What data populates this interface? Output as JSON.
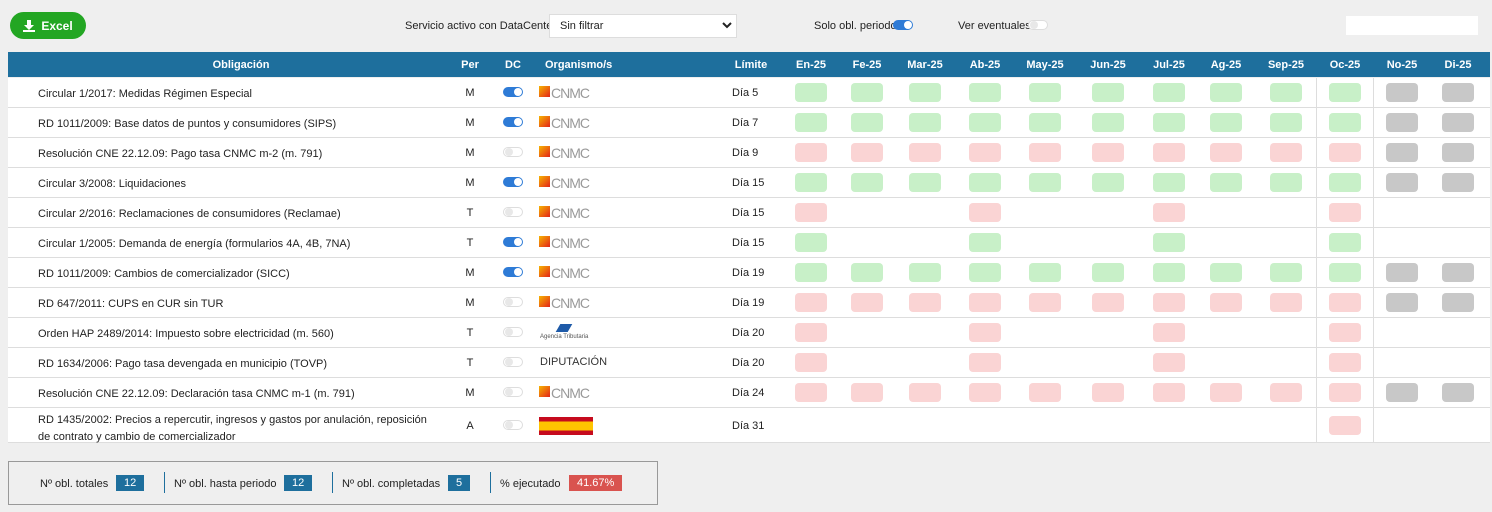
{
  "toolbar": {
    "excel_button": "Excel",
    "filter_label": "Servicio activo con DataCenter:",
    "filter_value": "Sin filtrar",
    "period_toggle_label": "Solo obl. periodo",
    "period_toggle_on": true,
    "eventual_toggle_label": "Ver eventuales",
    "eventual_toggle_on": false
  },
  "table": {
    "headers": [
      "Obligación",
      "Per",
      "DC",
      "Organismo/s",
      "Límite",
      "En-25",
      "Fe-25",
      "Mar-25",
      "Ab-25",
      "May-25",
      "Jun-25",
      "Jul-25",
      "Ag-25",
      "Sep-25",
      "Oc-25",
      "No-25",
      "Di-25"
    ],
    "rows": [
      {
        "obligation": "Circular 1/2017: Medidas Régimen Especial",
        "per": "M",
        "dc": true,
        "organism": "CNMC",
        "limit": "Día 5",
        "months": [
          "#c8f0c8",
          "#c8f0c8",
          "#c8f0c8",
          "#c8f0c8",
          "#c8f0c8",
          "#c8f0c8",
          "#c8f0c8",
          "#c8f0c8",
          "#c8f0c8",
          "#c8f0c8",
          "#c8c8c8",
          "#c8c8c8"
        ]
      },
      {
        "obligation": "RD 1011/2009: Base datos de puntos y consumidores (SIPS)",
        "per": "M",
        "dc": true,
        "organism": "CNMC",
        "limit": "Día 7",
        "months": [
          "#c8f0c8",
          "#c8f0c8",
          "#c8f0c8",
          "#c8f0c8",
          "#c8f0c8",
          "#c8f0c8",
          "#c8f0c8",
          "#c8f0c8",
          "#c8f0c8",
          "#c8f0c8",
          "#c8c8c8",
          "#c8c8c8"
        ]
      },
      {
        "obligation": "Resolución CNE 22.12.09: Pago tasa CNMC m-2 (m. 791)",
        "per": "M",
        "dc": false,
        "organism": "CNMC",
        "limit": "Día 9",
        "months": [
          "#fad4d4",
          "#fad4d4",
          "#fad4d4",
          "#fad4d4",
          "#fad4d4",
          "#fad4d4",
          "#fad4d4",
          "#fad4d4",
          "#fad4d4",
          "#fad4d4",
          "#c8c8c8",
          "#c8c8c8"
        ]
      },
      {
        "obligation": "Circular 3/2008: Liquidaciones",
        "per": "M",
        "dc": true,
        "organism": "CNMC",
        "limit": "Día 15",
        "months": [
          "#c8f0c8",
          "#c8f0c8",
          "#c8f0c8",
          "#c8f0c8",
          "#c8f0c8",
          "#c8f0c8",
          "#c8f0c8",
          "#c8f0c8",
          "#c8f0c8",
          "#c8f0c8",
          "#c8c8c8",
          "#c8c8c8"
        ]
      },
      {
        "obligation": "Circular 2/2016: Reclamaciones de consumidores (Reclamae)",
        "per": "T",
        "dc": false,
        "organism": "CNMC",
        "limit": "Día 15",
        "months": [
          "#fad4d4",
          null,
          null,
          "#fad4d4",
          null,
          null,
          "#fad4d4",
          null,
          null,
          "#fad4d4",
          null,
          null
        ]
      },
      {
        "obligation": "Circular 1/2005: Demanda de energía (formularios 4A, 4B, 7NA)",
        "per": "T",
        "dc": true,
        "organism": "CNMC",
        "limit": "Día 15",
        "months": [
          "#c8f0c8",
          null,
          null,
          "#c8f0c8",
          null,
          null,
          "#c8f0c8",
          null,
          null,
          "#c8f0c8",
          null,
          null
        ]
      },
      {
        "obligation": "RD 1011/2009: Cambios de comercializador (SICC)",
        "per": "M",
        "dc": true,
        "organism": "CNMC",
        "limit": "Día 19",
        "months": [
          "#c8f0c8",
          "#c8f0c8",
          "#c8f0c8",
          "#c8f0c8",
          "#c8f0c8",
          "#c8f0c8",
          "#c8f0c8",
          "#c8f0c8",
          "#c8f0c8",
          "#c8f0c8",
          "#c8c8c8",
          "#c8c8c8"
        ]
      },
      {
        "obligation": "RD 647/2011: CUPS en CUR sin TUR",
        "per": "M",
        "dc": false,
        "organism": "CNMC",
        "limit": "Día 19",
        "months": [
          "#fad4d4",
          "#fad4d4",
          "#fad4d4",
          "#fad4d4",
          "#fad4d4",
          "#fad4d4",
          "#fad4d4",
          "#fad4d4",
          "#fad4d4",
          "#fad4d4",
          "#c8c8c8",
          "#c8c8c8"
        ]
      },
      {
        "obligation": "Orden HAP 2489/2014: Impuesto sobre electricidad (m. 560)",
        "per": "T",
        "dc": false,
        "organism": "Agencia Tributaria",
        "limit": "Día 20",
        "months": [
          "#fad4d4",
          null,
          null,
          "#fad4d4",
          null,
          null,
          "#fad4d4",
          null,
          null,
          "#fad4d4",
          null,
          null
        ]
      },
      {
        "obligation": "RD 1634/2006: Pago tasa devengada en municipio (TOVP)",
        "per": "T",
        "dc": false,
        "organism": "DIPUTACIÓN",
        "limit": "Día 20",
        "months": [
          "#fad4d4",
          null,
          null,
          "#fad4d4",
          null,
          null,
          "#fad4d4",
          null,
          null,
          "#fad4d4",
          null,
          null
        ]
      },
      {
        "obligation": "Resolución CNE 22.12.09: Declaración tasa CNMC m-1 (m. 791)",
        "per": "M",
        "dc": false,
        "organism": "CNMC",
        "limit": "Día 24",
        "months": [
          "#fad4d4",
          "#fad4d4",
          "#fad4d4",
          "#fad4d4",
          "#fad4d4",
          "#fad4d4",
          "#fad4d4",
          "#fad4d4",
          "#fad4d4",
          "#fad4d4",
          "#c8c8c8",
          "#c8c8c8"
        ]
      },
      {
        "obligation": "RD 1435/2002: Precios a repercutir, ingresos y gastos por anulación, reposición de contrato y cambio de comercializador",
        "per": "A",
        "dc": false,
        "limit": "Día 31",
        "months": [
          null,
          null,
          null,
          null,
          null,
          null,
          null,
          null,
          null,
          "#fad4d4",
          null,
          null
        ]
      }
    ]
  },
  "summary": [
    {
      "label": "Nº obl. totales",
      "value": 12
    },
    {
      "label": "Nº obl. hasta periodo",
      "value": 12
    },
    {
      "label": "Nº obl. completadas",
      "value": 5
    },
    {
      "label": "% ejecutado",
      "value": "41.67%"
    }
  ]
}
